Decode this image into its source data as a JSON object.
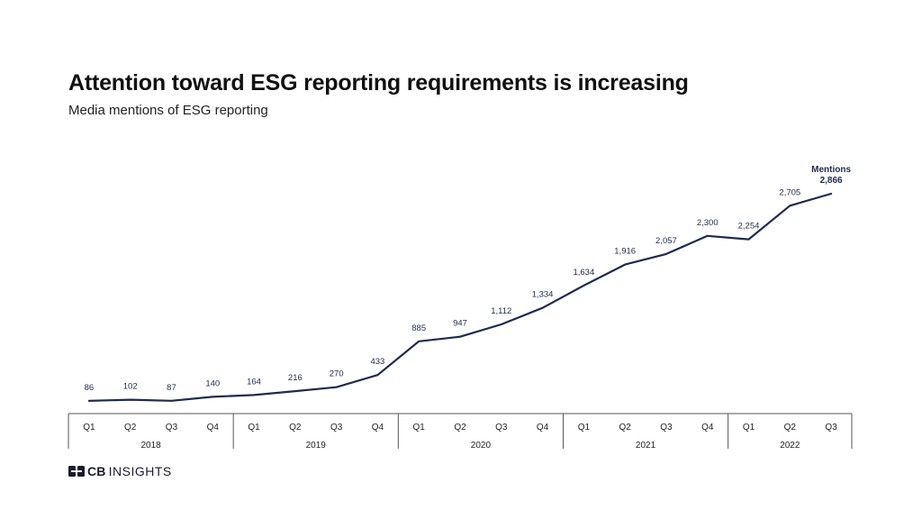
{
  "header": {
    "title": "Attention toward ESG reporting requirements is increasing",
    "subtitle": "Media mentions of ESG reporting"
  },
  "brand": {
    "logo_bold": "CB",
    "logo_light": "INSIGHTS",
    "logo_icon": "cb-insights-logo-icon"
  },
  "colors": {
    "line": "#1f2a4f",
    "axis": "#555555",
    "text": "#222222"
  },
  "chart_data": {
    "type": "line",
    "title": "Attention toward ESG reporting requirements is increasing",
    "subtitle": "Media mentions of ESG reporting",
    "categories": [
      "Q1",
      "Q2",
      "Q3",
      "Q4",
      "Q1",
      "Q2",
      "Q3",
      "Q4",
      "Q1",
      "Q2",
      "Q3",
      "Q4",
      "Q1",
      "Q2",
      "Q3",
      "Q4",
      "Q1",
      "Q2",
      "Q3"
    ],
    "year_groups": [
      {
        "year": "2018",
        "quarters": 4
      },
      {
        "year": "2019",
        "quarters": 4
      },
      {
        "year": "2020",
        "quarters": 4
      },
      {
        "year": "2021",
        "quarters": 4
      },
      {
        "year": "2022",
        "quarters": 3
      }
    ],
    "series": [
      {
        "name": "Mentions",
        "values": [
          86,
          102,
          87,
          140,
          164,
          216,
          270,
          433,
          885,
          947,
          1112,
          1334,
          1634,
          1916,
          2057,
          2300,
          2254,
          2705,
          2866
        ],
        "labels": [
          "86",
          "102",
          "87",
          "140",
          "164",
          "216",
          "270",
          "433",
          "885",
          "947",
          "1,112",
          "1,334",
          "1,634",
          "1,916",
          "2,057",
          "2,300",
          "2,254",
          "2,705",
          "2,866"
        ]
      }
    ],
    "ylim": [
      0,
      2866
    ],
    "grid": false,
    "legend": "inline-end"
  }
}
